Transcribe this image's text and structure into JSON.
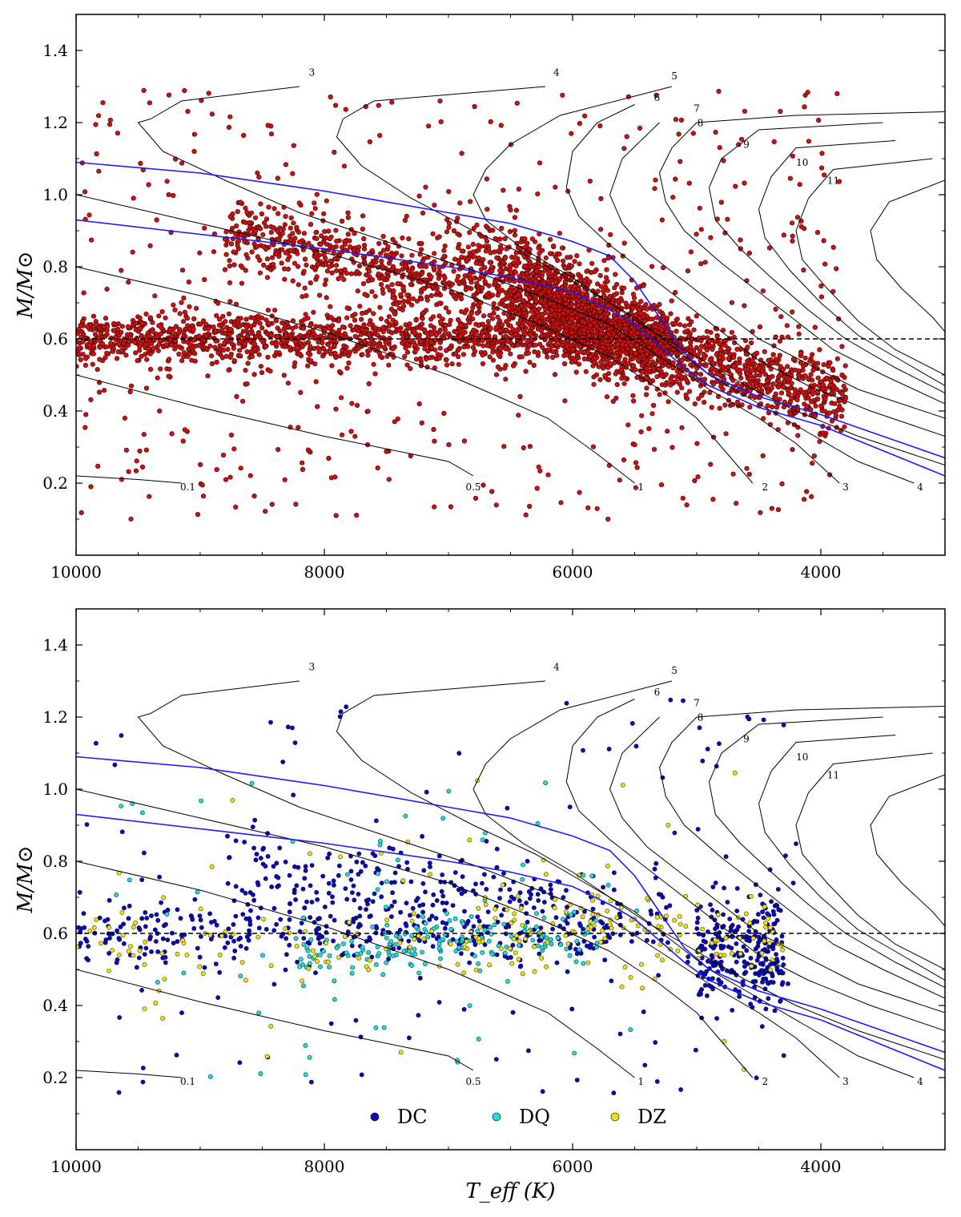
{
  "chart_data": [
    {
      "type": "scatter",
      "panel": "top",
      "xlabel": "",
      "ylabel": "M/M⊙",
      "xlim": [
        10000,
        3000
      ],
      "ylim": [
        0.0,
        1.5
      ],
      "x_ticks": [
        "10000",
        "8000",
        "6000",
        "4000"
      ],
      "y_ticks": [
        "0.2",
        "0.4",
        "0.6",
        "0.8",
        "1.0",
        "1.2",
        "1.4"
      ],
      "reference_line_mass": 0.6,
      "colors": {
        "points": "#cc1111",
        "point_edge": "#330000",
        "cooling_tracks": "#1a1aff",
        "isochrones": "#000000"
      },
      "point_count_estimate": 4000,
      "series": [
        {
          "component": "main 0.6 band",
          "x_range": [
            10000,
            5400
          ],
          "y_center": 0.6,
          "y_spread": 0.04
        },
        {
          "component": "massive branch",
          "x_range": [
            8800,
            5000
          ],
          "y_start": 0.92,
          "y_end": 0.62
        },
        {
          "component": "cool converging tail",
          "x_range": [
            5600,
            3800
          ],
          "y_start": 0.62,
          "y_end": 0.42
        },
        {
          "component": "dense clump",
          "x_center": 5900,
          "y_center": 0.66
        }
      ],
      "isochrone_labels": [
        "3",
        "4",
        "5",
        "6",
        "7",
        "8",
        "9",
        "10",
        "11",
        "0.1",
        "0.5",
        "1",
        "2",
        "3",
        "4"
      ],
      "grid": false,
      "legend": "none"
    },
    {
      "type": "scatter",
      "panel": "bottom",
      "xlabel": "T_eff (K)",
      "ylabel": "M/M⊙",
      "xlim": [
        10000,
        3000
      ],
      "ylim": [
        0.0,
        1.5
      ],
      "x_ticks": [
        "10000",
        "8000",
        "6000",
        "4000"
      ],
      "y_ticks": [
        "0.2",
        "0.4",
        "0.6",
        "0.8",
        "1.0",
        "1.2",
        "1.4"
      ],
      "reference_line_mass": 0.6,
      "series": [
        {
          "name": "DC",
          "color": "#0a0ab4",
          "count_estimate": 900,
          "x_range": [
            10000,
            4000
          ],
          "y_center": 0.6
        },
        {
          "name": "DQ",
          "color": "#22dddd",
          "count_estimate": 250,
          "x_range": [
            9000,
            5600
          ],
          "y_center": 0.55
        },
        {
          "name": "DZ",
          "color": "#f0e010",
          "count_estimate": 250,
          "x_range": [
            10000,
            4200
          ],
          "y_center": 0.58
        }
      ],
      "isochrone_labels": [
        "3",
        "4",
        "5",
        "6",
        "7",
        "8",
        "9",
        "10",
        "11",
        "0.1",
        "0.5",
        "1",
        "2",
        "3",
        "4"
      ],
      "grid": false,
      "legend": "bottom-center"
    }
  ],
  "legend": [
    {
      "name": "DC",
      "color": "#0a0ab4"
    },
    {
      "name": "DQ",
      "color": "#22dddd"
    },
    {
      "name": "DZ",
      "color": "#f0e010"
    }
  ]
}
